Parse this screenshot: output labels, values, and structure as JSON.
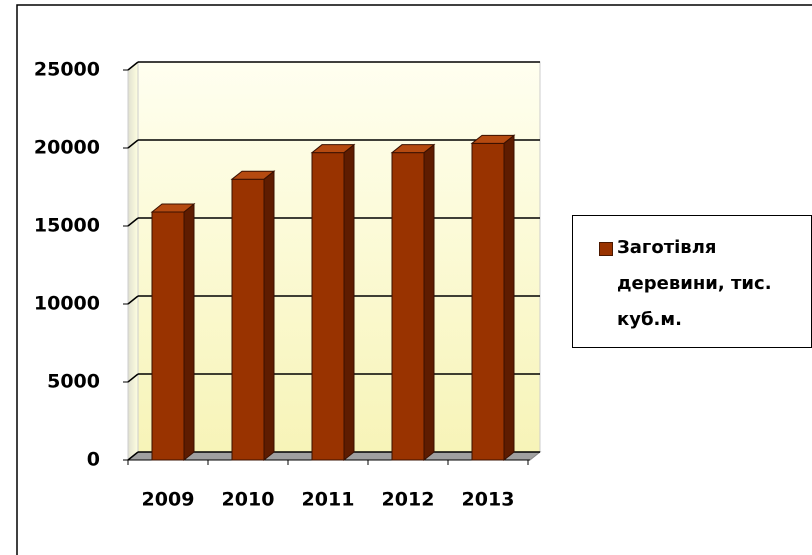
{
  "chart_data": {
    "type": "bar3d",
    "categories": [
      "2009",
      "2010",
      "2011",
      "2012",
      "2013"
    ],
    "series": [
      {
        "name": "Заготівля деревини, тис. куб.м.",
        "color": "#993300",
        "values": [
          15900,
          18000,
          19700,
          19700,
          20300
        ]
      }
    ],
    "ylim": [
      0,
      25000
    ],
    "yticks": [
      0,
      5000,
      10000,
      15000,
      20000,
      25000
    ],
    "grid": true,
    "legend": "right"
  }
}
